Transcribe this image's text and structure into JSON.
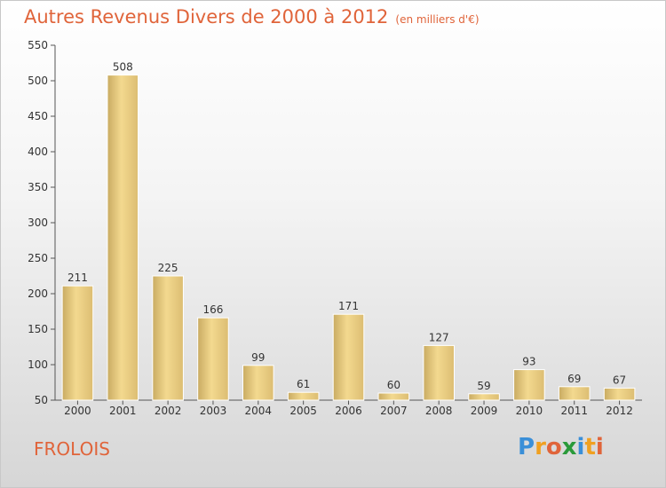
{
  "chart_data": {
    "type": "bar",
    "title": "Autres Revenus Divers de 2000 à 2012",
    "unit": "(en milliers d'€)",
    "categories": [
      "2000",
      "2001",
      "2002",
      "2003",
      "2004",
      "2005",
      "2006",
      "2007",
      "2008",
      "2009",
      "2010",
      "2011",
      "2012"
    ],
    "values": [
      211,
      508,
      225,
      166,
      99,
      61,
      171,
      60,
      127,
      59,
      93,
      69,
      67
    ],
    "ylim": [
      50,
      550
    ],
    "yticks": [
      50,
      100,
      150,
      200,
      250,
      300,
      350,
      400,
      450,
      500,
      550
    ],
    "grid": false,
    "bar_color": "#e8c97a"
  },
  "commune": "FROLOIS",
  "logo": {
    "letters": [
      "P",
      "r",
      "o",
      "x",
      "i",
      "t",
      "i"
    ],
    "colors": [
      "#3a8fd8",
      "#f0a020",
      "#e0643a",
      "#2a9a3a",
      "#3a8fd8",
      "#f0a020",
      "#e0643a"
    ]
  }
}
